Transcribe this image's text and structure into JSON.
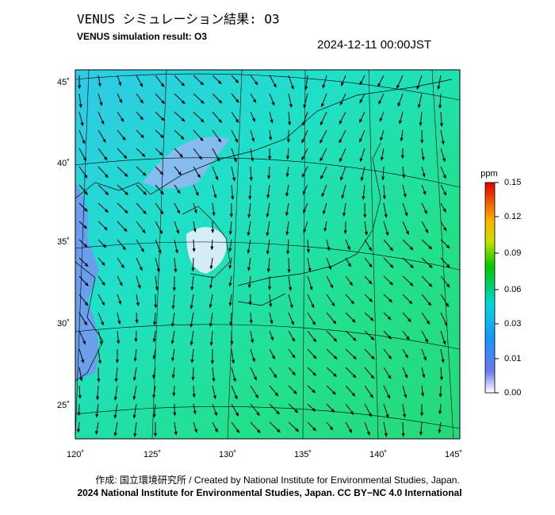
{
  "header": {
    "title": "VENUS シミュレーション結果: O3",
    "subtitle": "VENUS simulation result: O3",
    "datetime": "2024-12-11 00:00JST"
  },
  "map": {
    "lat_labels": [
      "45˚",
      "40˚",
      "35˚",
      "30˚",
      "25˚"
    ],
    "lon_labels": [
      "120˚",
      "125˚",
      "130˚",
      "135˚",
      "140˚",
      "145˚"
    ]
  },
  "colorbar": {
    "unit": "ppm",
    "labels": [
      "0.15",
      "0.12",
      "0.09",
      "0.06",
      "0.03",
      "0.01",
      "0.00"
    ]
  },
  "footer": {
    "credit": "作成: 国立環境研究所 / Created by National Institute for Environmental Studies, Japan.",
    "copyright": "2024 National Institute for Environmental Studies, Japan. CC BY−NC 4.0 International"
  }
}
